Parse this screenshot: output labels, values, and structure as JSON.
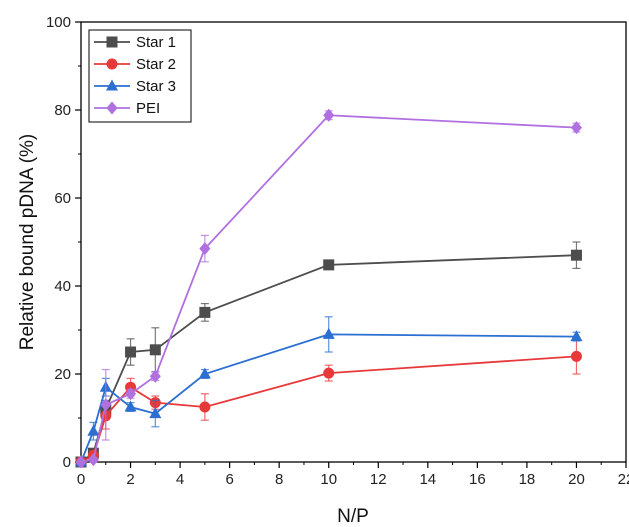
{
  "chart_data": {
    "type": "line",
    "xlabel": "N/P",
    "ylabel": "Relative bound pDNA (%)",
    "xlim": [
      0,
      22
    ],
    "ylim": [
      0,
      100
    ],
    "xticks": [
      0,
      2,
      4,
      6,
      8,
      10,
      12,
      14,
      16,
      18,
      20,
      22
    ],
    "yticks": [
      0,
      20,
      40,
      60,
      80,
      100
    ],
    "grid": false,
    "legend_position": "top-left",
    "x": [
      0,
      0.5,
      1,
      2,
      3,
      5,
      10,
      20
    ],
    "series": [
      {
        "name": "Star 1",
        "color": "#4d4d4d",
        "marker": "square",
        "values": [
          0,
          2,
          12,
          25,
          25.5,
          34,
          44.8,
          47
        ],
        "errors": [
          0,
          1,
          2,
          3,
          5,
          2,
          0.5,
          3
        ]
      },
      {
        "name": "Star 2",
        "color": "#e8393a",
        "marker": "circle",
        "values": [
          0,
          1.5,
          10.5,
          17,
          13.5,
          12.5,
          20.2,
          24
        ],
        "errors": [
          0,
          1,
          3,
          2,
          1.5,
          3,
          1.8,
          4
        ]
      },
      {
        "name": "Star 3",
        "color": "#2a6fd1",
        "marker": "triangle",
        "values": [
          0,
          7,
          17,
          12.5,
          11,
          20,
          29,
          28.5
        ],
        "errors": [
          0,
          2,
          2,
          1,
          3,
          1,
          4,
          1
        ]
      },
      {
        "name": "PEI",
        "color": "#b070e0",
        "marker": "diamond",
        "values": [
          0,
          0.5,
          13,
          15.5,
          19.5,
          48.5,
          78.8,
          76
        ],
        "errors": [
          0,
          0.5,
          8,
          1,
          1,
          3,
          1,
          1
        ]
      }
    ]
  }
}
